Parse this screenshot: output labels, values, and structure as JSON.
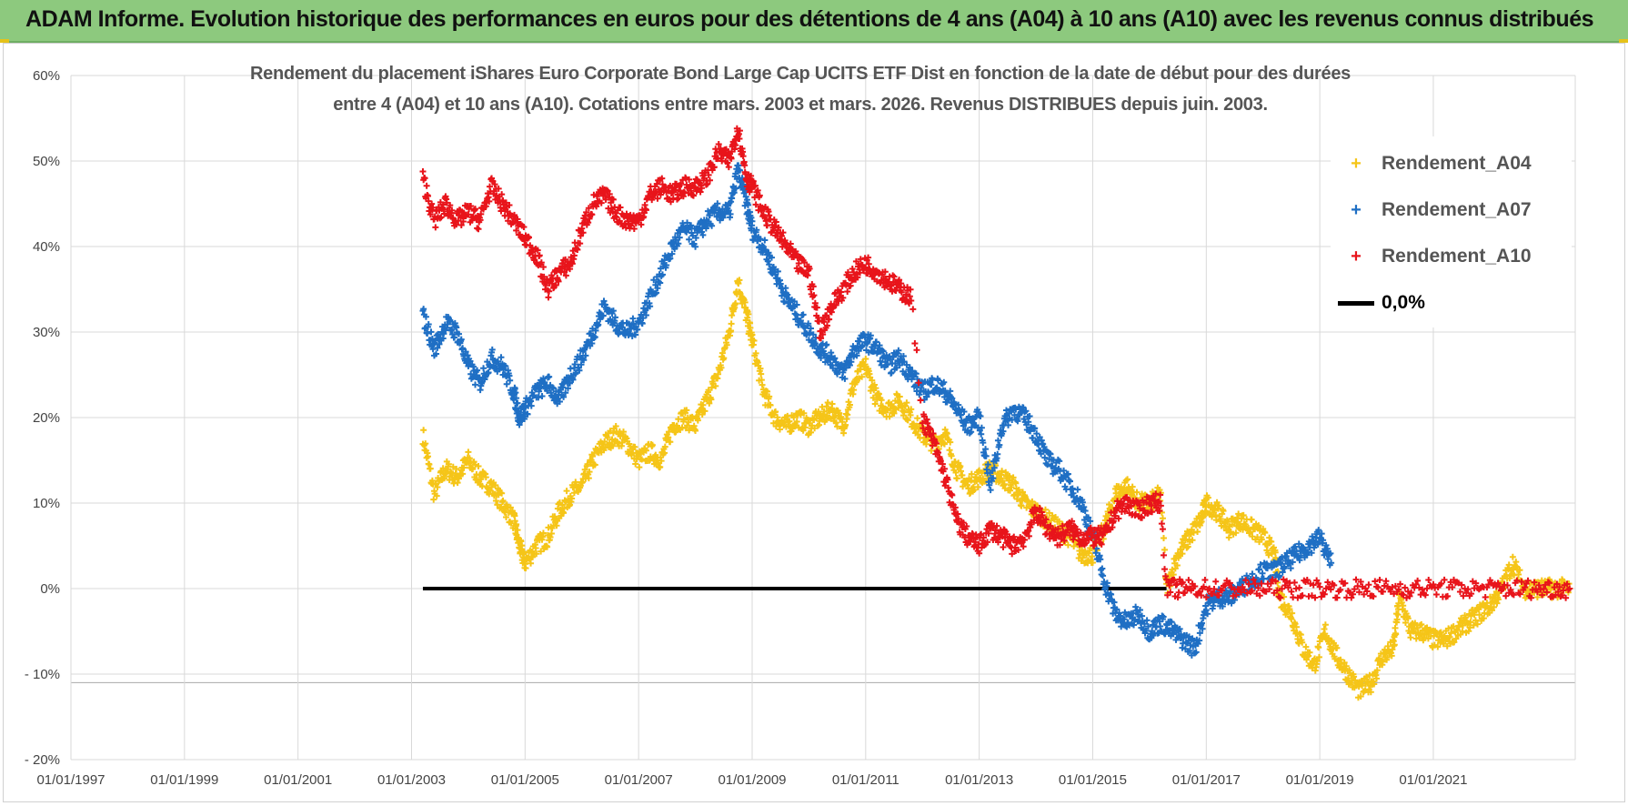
{
  "banner": {
    "title": "ADAM Informe. Evolution historique des performances en euros pour des détentions de 4 ans (A04) à 10 ans (A10) avec les revenus connus distribués"
  },
  "chart_data": {
    "type": "scatter",
    "title_line1": "Rendement du placement iShares Euro Corporate Bond Large Cap UCITS ETF Dist en fonction de la date de début pour des durées",
    "title_line2": "entre 4 (A04) et 10 ans (A10). Cotations entre mars. 2003 et mars. 2026. Revenus DISTRIBUES depuis juin. 2003.",
    "xlabel": "",
    "ylabel": "",
    "x_range": [
      1997.0,
      2023.5
    ],
    "ylim": [
      -20,
      60
    ],
    "x_ticks": [
      "01/01/1997",
      "01/01/1999",
      "01/01/2001",
      "01/01/2003",
      "01/01/2005",
      "01/01/2007",
      "01/01/2009",
      "01/01/2011",
      "01/01/2013",
      "01/01/2015",
      "01/01/2017",
      "01/01/2019",
      "01/01/2021"
    ],
    "y_ticks": [
      "60%",
      "50%",
      "40%",
      "30%",
      "20%",
      "10%",
      "0%",
      "- 10%",
      "- 20%"
    ],
    "grid": true,
    "legend_position": "top-right",
    "series": [
      {
        "name": "Rendement_A04",
        "color": "#f5c518",
        "marker": "+",
        "points": [
          [
            2003.2,
            18
          ],
          [
            2003.4,
            11
          ],
          [
            2003.6,
            14
          ],
          [
            2003.8,
            13
          ],
          [
            2004.0,
            15
          ],
          [
            2004.2,
            13
          ],
          [
            2004.4,
            12
          ],
          [
            2004.6,
            10
          ],
          [
            2004.8,
            8
          ],
          [
            2004.9,
            5
          ],
          [
            2005.0,
            3
          ],
          [
            2005.2,
            5
          ],
          [
            2005.4,
            6
          ],
          [
            2005.6,
            9
          ],
          [
            2005.8,
            11
          ],
          [
            2006.0,
            12
          ],
          [
            2006.2,
            15
          ],
          [
            2006.4,
            17
          ],
          [
            2006.6,
            18
          ],
          [
            2006.8,
            17
          ],
          [
            2007.0,
            15
          ],
          [
            2007.2,
            16
          ],
          [
            2007.4,
            15
          ],
          [
            2007.6,
            19
          ],
          [
            2007.8,
            20
          ],
          [
            2008.0,
            19
          ],
          [
            2008.2,
            22
          ],
          [
            2008.4,
            25
          ],
          [
            2008.6,
            30
          ],
          [
            2008.75,
            36
          ],
          [
            2008.9,
            32
          ],
          [
            2009.0,
            29
          ],
          [
            2009.2,
            23
          ],
          [
            2009.4,
            20
          ],
          [
            2009.6,
            19
          ],
          [
            2009.8,
            20
          ],
          [
            2010.0,
            19
          ],
          [
            2010.2,
            20
          ],
          [
            2010.4,
            21
          ],
          [
            2010.6,
            19
          ],
          [
            2010.8,
            24
          ],
          [
            2011.0,
            26
          ],
          [
            2011.2,
            22
          ],
          [
            2011.4,
            21
          ],
          [
            2011.6,
            22
          ],
          [
            2011.8,
            20
          ],
          [
            2012.0,
            18
          ],
          [
            2012.2,
            17
          ],
          [
            2012.4,
            18
          ],
          [
            2012.6,
            14
          ],
          [
            2012.8,
            12
          ],
          [
            2013.0,
            13
          ],
          [
            2013.2,
            14
          ],
          [
            2013.4,
            13
          ],
          [
            2013.6,
            12
          ],
          [
            2013.8,
            10
          ],
          [
            2014.0,
            9
          ],
          [
            2014.2,
            8
          ],
          [
            2014.4,
            7
          ],
          [
            2014.6,
            6
          ],
          [
            2014.8,
            4
          ],
          [
            2015.0,
            4
          ],
          [
            2015.2,
            7
          ],
          [
            2015.4,
            11
          ],
          [
            2015.6,
            12
          ],
          [
            2015.8,
            10
          ],
          [
            2016.0,
            10
          ],
          [
            2016.2,
            11
          ],
          [
            2016.3,
            0
          ],
          [
            2016.5,
            4
          ],
          [
            2016.7,
            6
          ],
          [
            2016.9,
            8
          ],
          [
            2017.0,
            10
          ],
          [
            2017.2,
            9
          ],
          [
            2017.4,
            7
          ],
          [
            2017.6,
            8
          ],
          [
            2017.8,
            7
          ],
          [
            2018.0,
            6
          ],
          [
            2018.2,
            4
          ],
          [
            2018.3,
            -1
          ],
          [
            2018.5,
            -3
          ],
          [
            2018.7,
            -7
          ],
          [
            2018.9,
            -9
          ],
          [
            2019.1,
            -5
          ],
          [
            2019.3,
            -8
          ],
          [
            2019.5,
            -10
          ],
          [
            2019.7,
            -12
          ],
          [
            2019.9,
            -11
          ],
          [
            2020.1,
            -8
          ],
          [
            2020.3,
            -7
          ],
          [
            2020.4,
            -1
          ],
          [
            2020.6,
            -5
          ],
          [
            2020.8,
            -5
          ],
          [
            2021.0,
            -6
          ],
          [
            2021.2,
            -6
          ],
          [
            2021.4,
            -5
          ],
          [
            2021.6,
            -4
          ],
          [
            2021.8,
            -3
          ],
          [
            2022.0,
            -2
          ],
          [
            2022.2,
            0
          ],
          [
            2022.4,
            3
          ],
          [
            2022.6,
            0
          ],
          [
            2022.8,
            0
          ],
          [
            2023.0,
            0
          ],
          [
            2023.2,
            0
          ],
          [
            2023.4,
            0
          ]
        ]
      },
      {
        "name": "Rendement_A07",
        "color": "#1f6fc4",
        "marker": "+",
        "points": [
          [
            2003.2,
            32
          ],
          [
            2003.4,
            28
          ],
          [
            2003.6,
            31
          ],
          [
            2003.8,
            30
          ],
          [
            2004.0,
            26
          ],
          [
            2004.2,
            24
          ],
          [
            2004.4,
            27
          ],
          [
            2004.6,
            26
          ],
          [
            2004.8,
            23
          ],
          [
            2004.9,
            20
          ],
          [
            2005.0,
            21
          ],
          [
            2005.2,
            23
          ],
          [
            2005.4,
            24
          ],
          [
            2005.6,
            22
          ],
          [
            2005.8,
            25
          ],
          [
            2006.0,
            27
          ],
          [
            2006.2,
            30
          ],
          [
            2006.4,
            33
          ],
          [
            2006.6,
            31
          ],
          [
            2006.8,
            30
          ],
          [
            2007.0,
            31
          ],
          [
            2007.2,
            34
          ],
          [
            2007.4,
            37
          ],
          [
            2007.6,
            40
          ],
          [
            2007.8,
            42
          ],
          [
            2008.0,
            41
          ],
          [
            2008.2,
            43
          ],
          [
            2008.4,
            44
          ],
          [
            2008.6,
            44
          ],
          [
            2008.75,
            49
          ],
          [
            2008.9,
            45
          ],
          [
            2009.0,
            42
          ],
          [
            2009.2,
            40
          ],
          [
            2009.4,
            37
          ],
          [
            2009.6,
            34
          ],
          [
            2009.8,
            32
          ],
          [
            2010.0,
            30
          ],
          [
            2010.2,
            28
          ],
          [
            2010.4,
            27
          ],
          [
            2010.6,
            25
          ],
          [
            2010.8,
            28
          ],
          [
            2011.0,
            29
          ],
          [
            2011.2,
            28
          ],
          [
            2011.4,
            26
          ],
          [
            2011.6,
            27
          ],
          [
            2011.8,
            25
          ],
          [
            2012.0,
            23
          ],
          [
            2012.2,
            24
          ],
          [
            2012.4,
            23
          ],
          [
            2012.6,
            21
          ],
          [
            2012.8,
            19
          ],
          [
            2013.0,
            20
          ],
          [
            2013.2,
            12
          ],
          [
            2013.4,
            19
          ],
          [
            2013.6,
            21
          ],
          [
            2013.8,
            20
          ],
          [
            2014.0,
            18
          ],
          [
            2014.2,
            15
          ],
          [
            2014.4,
            14
          ],
          [
            2014.6,
            12
          ],
          [
            2014.8,
            10
          ],
          [
            2015.0,
            6
          ],
          [
            2015.2,
            1
          ],
          [
            2015.4,
            -3
          ],
          [
            2015.6,
            -4
          ],
          [
            2015.8,
            -3
          ],
          [
            2016.0,
            -5
          ],
          [
            2016.2,
            -4
          ],
          [
            2016.4,
            -5
          ],
          [
            2016.6,
            -6
          ],
          [
            2016.8,
            -7
          ],
          [
            2017.0,
            -2
          ],
          [
            2017.2,
            -1
          ],
          [
            2017.4,
            -1
          ],
          [
            2017.6,
            0
          ],
          [
            2017.8,
            1
          ],
          [
            2018.0,
            2
          ],
          [
            2018.2,
            2
          ],
          [
            2018.4,
            3
          ],
          [
            2018.6,
            4
          ],
          [
            2018.8,
            5
          ],
          [
            2019.0,
            6
          ],
          [
            2019.2,
            3
          ]
        ]
      },
      {
        "name": "Rendement_A10",
        "color": "#e8141b",
        "marker": "+",
        "points": [
          [
            2003.2,
            48
          ],
          [
            2003.4,
            43
          ],
          [
            2003.6,
            45
          ],
          [
            2003.8,
            43
          ],
          [
            2004.0,
            44
          ],
          [
            2004.2,
            43
          ],
          [
            2004.4,
            47
          ],
          [
            2004.6,
            45
          ],
          [
            2004.8,
            43
          ],
          [
            2005.0,
            41
          ],
          [
            2005.2,
            39
          ],
          [
            2005.4,
            35
          ],
          [
            2005.6,
            37
          ],
          [
            2005.8,
            38
          ],
          [
            2006.0,
            42
          ],
          [
            2006.2,
            45
          ],
          [
            2006.4,
            46
          ],
          [
            2006.6,
            44
          ],
          [
            2006.8,
            43
          ],
          [
            2007.0,
            43
          ],
          [
            2007.2,
            46
          ],
          [
            2007.4,
            47
          ],
          [
            2007.6,
            46
          ],
          [
            2007.8,
            47
          ],
          [
            2008.0,
            47
          ],
          [
            2008.2,
            48
          ],
          [
            2008.4,
            51
          ],
          [
            2008.6,
            50
          ],
          [
            2008.75,
            54
          ],
          [
            2008.9,
            48
          ],
          [
            2009.0,
            47
          ],
          [
            2009.2,
            44
          ],
          [
            2009.4,
            42
          ],
          [
            2009.6,
            40
          ],
          [
            2009.8,
            38
          ],
          [
            2010.0,
            37
          ],
          [
            2010.2,
            30
          ],
          [
            2010.4,
            33
          ],
          [
            2010.6,
            35
          ],
          [
            2010.8,
            37
          ],
          [
            2011.0,
            38
          ],
          [
            2011.2,
            37
          ],
          [
            2011.4,
            36
          ],
          [
            2011.6,
            35
          ],
          [
            2011.8,
            34
          ],
          [
            2012.0,
            20
          ],
          [
            2012.2,
            17
          ],
          [
            2012.4,
            13
          ],
          [
            2012.6,
            8
          ],
          [
            2012.8,
            6
          ],
          [
            2013.0,
            5
          ],
          [
            2013.2,
            7
          ],
          [
            2013.4,
            6
          ],
          [
            2013.6,
            5
          ],
          [
            2013.8,
            6
          ],
          [
            2014.0,
            9
          ],
          [
            2014.2,
            7
          ],
          [
            2014.4,
            6
          ],
          [
            2014.6,
            7
          ],
          [
            2014.8,
            6
          ],
          [
            2015.0,
            6
          ],
          [
            2015.2,
            6
          ],
          [
            2015.4,
            9
          ],
          [
            2015.6,
            10
          ],
          [
            2015.8,
            9
          ],
          [
            2016.0,
            10
          ],
          [
            2016.2,
            10
          ],
          [
            2016.3,
            0
          ],
          [
            2016.6,
            0
          ],
          [
            2017.0,
            0
          ],
          [
            2017.5,
            0
          ],
          [
            2018.0,
            0
          ],
          [
            2018.5,
            0
          ],
          [
            2019.0,
            0
          ],
          [
            2019.5,
            0
          ],
          [
            2020.0,
            0
          ],
          [
            2020.5,
            0
          ],
          [
            2021.0,
            0
          ],
          [
            2021.5,
            0
          ],
          [
            2022.0,
            0
          ],
          [
            2022.5,
            0
          ],
          [
            2023.0,
            0
          ],
          [
            2023.4,
            0
          ]
        ]
      },
      {
        "name": "0,0%",
        "color": "#000000",
        "marker": "line",
        "points": [
          [
            2003.2,
            0
          ],
          [
            2016.3,
            0
          ]
        ]
      }
    ]
  }
}
